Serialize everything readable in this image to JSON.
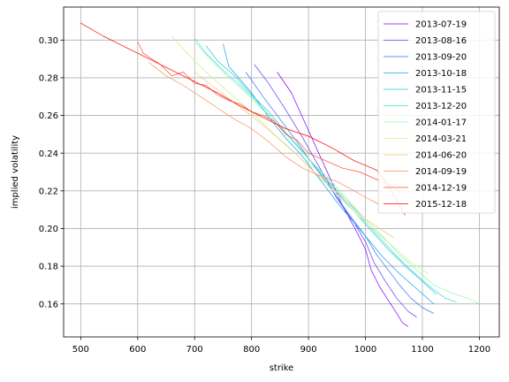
{
  "chart_data": {
    "type": "line",
    "title": "",
    "xlabel": "strike",
    "ylabel": "implied volatility",
    "xlim": [
      470,
      1235
    ],
    "ylim": [
      0.1425,
      0.3175
    ],
    "xticks": [
      500,
      600,
      700,
      800,
      900,
      1000,
      1100,
      1200
    ],
    "yticks": [
      0.16,
      0.18,
      0.2,
      0.22,
      0.24,
      0.26,
      0.28,
      0.3
    ],
    "ytick_format": 2,
    "grid": true,
    "legend_position": "upper-right",
    "series": [
      {
        "name": "2013-07-19",
        "color": "#7f00ff",
        "points": [
          [
            845,
            0.283
          ],
          [
            870,
            0.272
          ],
          [
            900,
            0.252
          ],
          [
            930,
            0.232
          ],
          [
            960,
            0.212
          ],
          [
            985,
            0.198
          ],
          [
            1000,
            0.189
          ],
          [
            1010,
            0.178
          ],
          [
            1025,
            0.169
          ],
          [
            1040,
            0.162
          ],
          [
            1055,
            0.155
          ],
          [
            1065,
            0.15
          ],
          [
            1075,
            0.148
          ]
        ]
      },
      {
        "name": "2013-08-16",
        "color": "#5a3bfd",
        "points": [
          [
            805,
            0.287
          ],
          [
            830,
            0.277
          ],
          [
            860,
            0.263
          ],
          [
            890,
            0.248
          ],
          [
            920,
            0.232
          ],
          [
            950,
            0.216
          ],
          [
            980,
            0.203
          ],
          [
            1000,
            0.193
          ],
          [
            1015,
            0.182
          ],
          [
            1035,
            0.172
          ],
          [
            1055,
            0.163
          ],
          [
            1075,
            0.156
          ],
          [
            1090,
            0.153
          ]
        ]
      },
      {
        "name": "2013-09-20",
        "color": "#3473f7",
        "points": [
          [
            790,
            0.283
          ],
          [
            820,
            0.27
          ],
          [
            850,
            0.258
          ],
          [
            880,
            0.246
          ],
          [
            910,
            0.233
          ],
          [
            940,
            0.221
          ],
          [
            970,
            0.208
          ],
          [
            1000,
            0.196
          ],
          [
            1020,
            0.186
          ],
          [
            1040,
            0.178
          ],
          [
            1060,
            0.17
          ],
          [
            1080,
            0.163
          ],
          [
            1100,
            0.158
          ],
          [
            1120,
            0.155
          ]
        ]
      },
      {
        "name": "2013-10-18",
        "color": "#0ea3ed",
        "points": [
          [
            750,
            0.298
          ],
          [
            760,
            0.286
          ],
          [
            780,
            0.279
          ],
          [
            800,
            0.272
          ],
          [
            830,
            0.259
          ],
          [
            860,
            0.248
          ],
          [
            890,
            0.238
          ],
          [
            920,
            0.226
          ],
          [
            950,
            0.214
          ],
          [
            980,
            0.203
          ],
          [
            1000,
            0.196
          ],
          [
            1030,
            0.185
          ],
          [
            1060,
            0.176
          ],
          [
            1090,
            0.168
          ],
          [
            1120,
            0.16
          ]
        ]
      },
      {
        "name": "2013-11-15",
        "color": "#17c5e0",
        "points": [
          [
            720,
            0.297
          ],
          [
            740,
            0.289
          ],
          [
            770,
            0.281
          ],
          [
            800,
            0.271
          ],
          [
            830,
            0.262
          ],
          [
            860,
            0.251
          ],
          [
            890,
            0.241
          ],
          [
            920,
            0.23
          ],
          [
            950,
            0.219
          ],
          [
            980,
            0.209
          ],
          [
            1010,
            0.199
          ],
          [
            1040,
            0.189
          ],
          [
            1070,
            0.18
          ],
          [
            1100,
            0.172
          ],
          [
            1125,
            0.165
          ]
        ]
      },
      {
        "name": "2013-12-20",
        "color": "#3ddfce",
        "points": [
          [
            700,
            0.301
          ],
          [
            720,
            0.293
          ],
          [
            750,
            0.284
          ],
          [
            780,
            0.276
          ],
          [
            810,
            0.267
          ],
          [
            840,
            0.257
          ],
          [
            870,
            0.247
          ],
          [
            900,
            0.237
          ],
          [
            930,
            0.227
          ],
          [
            960,
            0.217
          ],
          [
            990,
            0.207
          ],
          [
            1020,
            0.197
          ],
          [
            1050,
            0.187
          ],
          [
            1080,
            0.178
          ],
          [
            1110,
            0.17
          ],
          [
            1140,
            0.163
          ],
          [
            1160,
            0.161
          ]
        ]
      },
      {
        "name": "2014-01-17",
        "color": "#8efba6",
        "points": [
          [
            700,
            0.299
          ],
          [
            730,
            0.289
          ],
          [
            760,
            0.28
          ],
          [
            790,
            0.272
          ],
          [
            820,
            0.263
          ],
          [
            850,
            0.254
          ],
          [
            880,
            0.244
          ],
          [
            910,
            0.234
          ],
          [
            940,
            0.225
          ],
          [
            970,
            0.215
          ],
          [
            1000,
            0.205
          ],
          [
            1030,
            0.196
          ],
          [
            1060,
            0.186
          ],
          [
            1090,
            0.178
          ],
          [
            1120,
            0.17
          ],
          [
            1150,
            0.166
          ],
          [
            1180,
            0.163
          ],
          [
            1200,
            0.16
          ]
        ]
      },
      {
        "name": "2014-03-21",
        "color": "#c2f58b",
        "points": [
          [
            660,
            0.302
          ],
          [
            690,
            0.292
          ],
          [
            720,
            0.283
          ],
          [
            750,
            0.275
          ],
          [
            780,
            0.267
          ],
          [
            810,
            0.259
          ],
          [
            840,
            0.25
          ],
          [
            870,
            0.242
          ],
          [
            900,
            0.233
          ],
          [
            930,
            0.224
          ],
          [
            960,
            0.215
          ],
          [
            990,
            0.206
          ],
          [
            1020,
            0.198
          ],
          [
            1050,
            0.19
          ],
          [
            1080,
            0.182
          ],
          [
            1110,
            0.176
          ]
        ]
      },
      {
        "name": "2014-06-20",
        "color": "#f5c47a",
        "points": [
          [
            700,
            0.283
          ],
          [
            730,
            0.276
          ],
          [
            760,
            0.269
          ],
          [
            790,
            0.262
          ],
          [
            820,
            0.255
          ],
          [
            850,
            0.247
          ],
          [
            880,
            0.239
          ],
          [
            910,
            0.23
          ],
          [
            940,
            0.222
          ],
          [
            970,
            0.214
          ],
          [
            1000,
            0.205
          ],
          [
            1030,
            0.199
          ],
          [
            1050,
            0.195
          ]
        ]
      },
      {
        "name": "2014-09-19",
        "color": "#fb8c54",
        "points": [
          [
            620,
            0.288
          ],
          [
            650,
            0.281
          ],
          [
            680,
            0.276
          ],
          [
            710,
            0.27
          ],
          [
            740,
            0.264
          ],
          [
            770,
            0.258
          ],
          [
            800,
            0.253
          ],
          [
            830,
            0.246
          ],
          [
            860,
            0.238
          ],
          [
            890,
            0.232
          ],
          [
            920,
            0.228
          ],
          [
            950,
            0.225
          ],
          [
            980,
            0.22
          ],
          [
            1010,
            0.215
          ],
          [
            1030,
            0.212
          ]
        ]
      },
      {
        "name": "2014-12-19",
        "color": "#fe4d2a",
        "points": [
          [
            600,
            0.299
          ],
          [
            610,
            0.293
          ],
          [
            640,
            0.287
          ],
          [
            660,
            0.281
          ],
          [
            680,
            0.283
          ],
          [
            700,
            0.277
          ],
          [
            720,
            0.276
          ],
          [
            740,
            0.271
          ],
          [
            760,
            0.268
          ],
          [
            780,
            0.266
          ],
          [
            800,
            0.262
          ],
          [
            820,
            0.26
          ],
          [
            840,
            0.257
          ],
          [
            860,
            0.25
          ],
          [
            880,
            0.247
          ],
          [
            900,
            0.24
          ],
          [
            930,
            0.236
          ],
          [
            960,
            0.232
          ],
          [
            990,
            0.23
          ],
          [
            1020,
            0.226
          ],
          [
            1050,
            0.222
          ],
          [
            1060,
            0.219
          ]
        ]
      },
      {
        "name": "2015-12-18",
        "color": "#ff0000",
        "points": [
          [
            500,
            0.309
          ],
          [
            540,
            0.302
          ],
          [
            580,
            0.296
          ],
          [
            620,
            0.29
          ],
          [
            660,
            0.284
          ],
          [
            700,
            0.278
          ],
          [
            740,
            0.272
          ],
          [
            780,
            0.265
          ],
          [
            820,
            0.259
          ],
          [
            860,
            0.253
          ],
          [
            900,
            0.249
          ],
          [
            940,
            0.243
          ],
          [
            980,
            0.236
          ],
          [
            1020,
            0.231
          ],
          [
            1040,
            0.223
          ],
          [
            1060,
            0.212
          ],
          [
            1070,
            0.207
          ]
        ]
      }
    ]
  }
}
